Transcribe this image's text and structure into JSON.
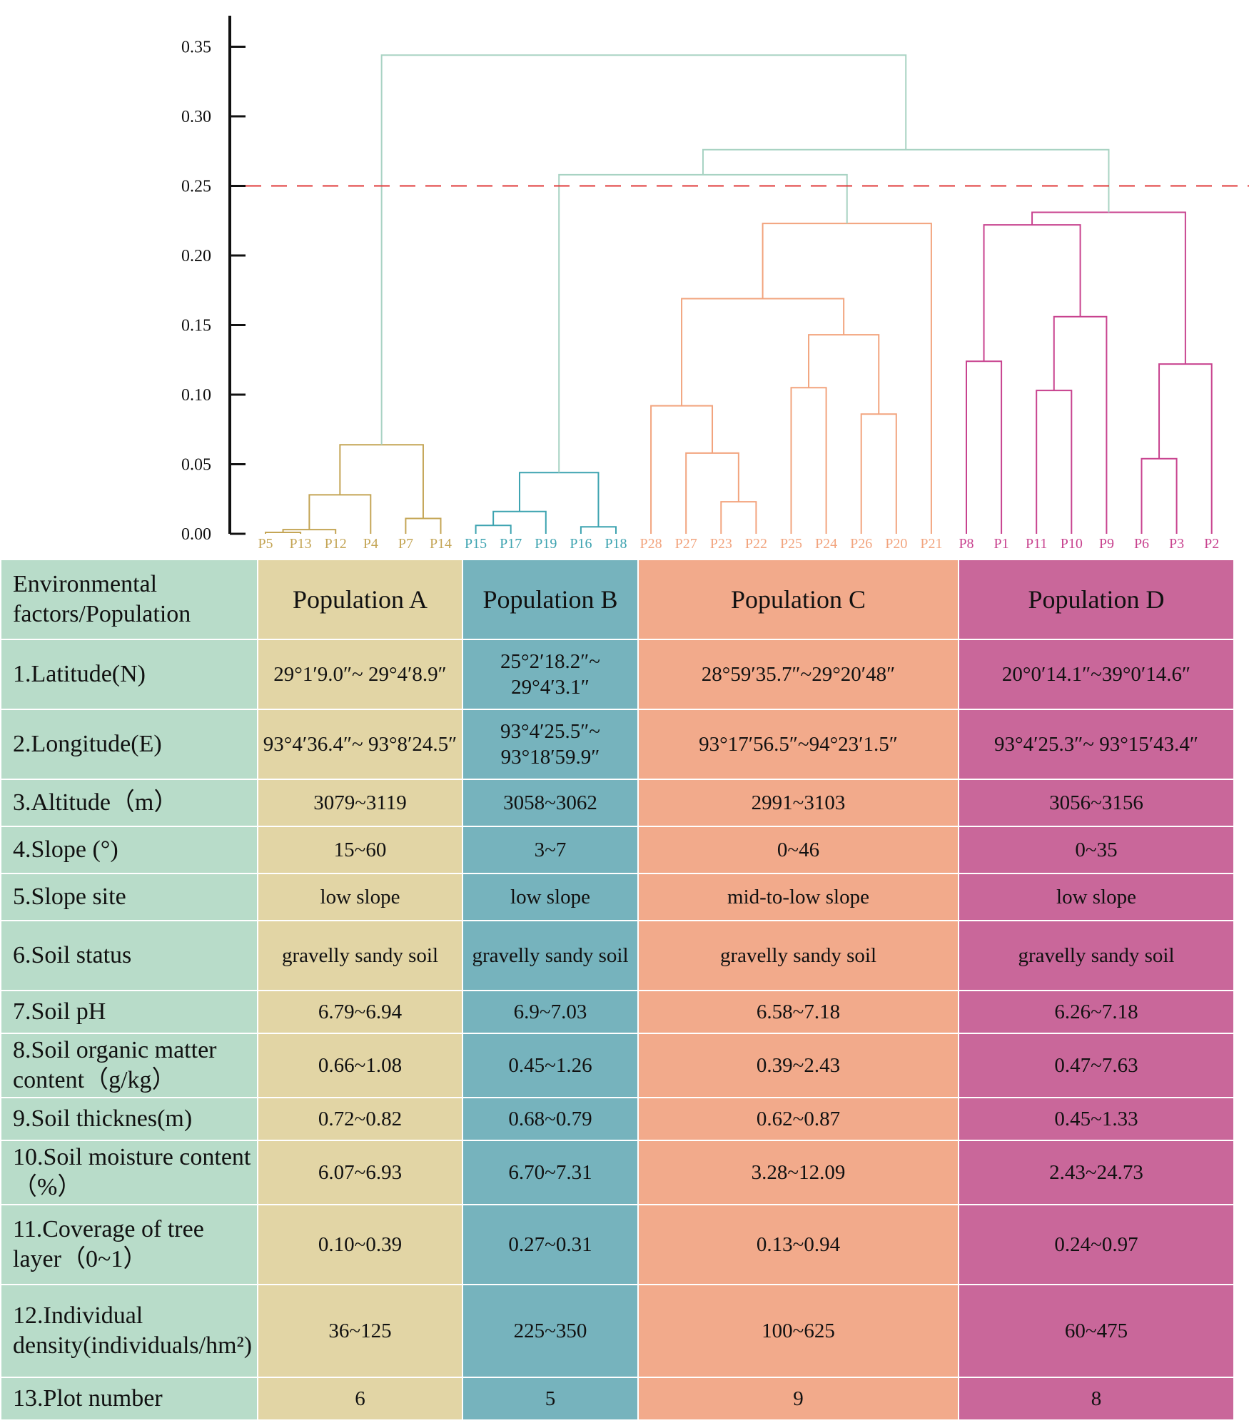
{
  "chart_data": {
    "type": "dendrogram",
    "yticks": [
      "0.00",
      "0.05",
      "0.10",
      "0.15",
      "0.20",
      "0.25",
      "0.30",
      "0.35"
    ],
    "ylim": [
      0,
      0.375
    ],
    "cutoff": 0.25,
    "cutoff_color": "#e03a3a",
    "leaves": [
      {
        "label": "P5",
        "group": "A"
      },
      {
        "label": "P13",
        "group": "A"
      },
      {
        "label": "P12",
        "group": "A"
      },
      {
        "label": "P4",
        "group": "A"
      },
      {
        "label": "P7",
        "group": "A"
      },
      {
        "label": "P14",
        "group": "A"
      },
      {
        "label": "P15",
        "group": "B"
      },
      {
        "label": "P17",
        "group": "B"
      },
      {
        "label": "P19",
        "group": "B"
      },
      {
        "label": "P16",
        "group": "B"
      },
      {
        "label": "P18",
        "group": "B"
      },
      {
        "label": "P28",
        "group": "C"
      },
      {
        "label": "P27",
        "group": "C"
      },
      {
        "label": "P23",
        "group": "C"
      },
      {
        "label": "P22",
        "group": "C"
      },
      {
        "label": "P25",
        "group": "C"
      },
      {
        "label": "P24",
        "group": "C"
      },
      {
        "label": "P26",
        "group": "C"
      },
      {
        "label": "P20",
        "group": "C"
      },
      {
        "label": "P21",
        "group": "C"
      },
      {
        "label": "P8",
        "group": "D"
      },
      {
        "label": "P1",
        "group": "D"
      },
      {
        "label": "P11",
        "group": "D"
      },
      {
        "label": "P10",
        "group": "D"
      },
      {
        "label": "P9",
        "group": "D"
      },
      {
        "label": "P6",
        "group": "D"
      },
      {
        "label": "P3",
        "group": "D"
      },
      {
        "label": "P2",
        "group": "D"
      }
    ],
    "group_colors": {
      "A": "#c4a555",
      "B": "#3da3b0",
      "C": "#f2a47e",
      "D": "#c8438f",
      "root": "#a8d3c3"
    },
    "merges": [
      {
        "id": "a1",
        "left": "P5",
        "right": "P13",
        "height": 0.001,
        "group": "A"
      },
      {
        "id": "a2",
        "left": "a1",
        "right": "P12",
        "height": 0.003,
        "group": "A"
      },
      {
        "id": "a3",
        "left": "a2",
        "right": "P4",
        "height": 0.028,
        "group": "A"
      },
      {
        "id": "a4",
        "left": "P7",
        "right": "P14",
        "height": 0.011,
        "group": "A"
      },
      {
        "id": "A",
        "left": "a3",
        "right": "a4",
        "height": 0.064,
        "group": "A"
      },
      {
        "id": "b1",
        "left": "P15",
        "right": "P17",
        "height": 0.006,
        "group": "B"
      },
      {
        "id": "b2",
        "left": "b1",
        "right": "P19",
        "height": 0.016,
        "group": "B"
      },
      {
        "id": "b3",
        "left": "P16",
        "right": "P18",
        "height": 0.005,
        "group": "B"
      },
      {
        "id": "B",
        "left": "b2",
        "right": "b3",
        "height": 0.044,
        "group": "B"
      },
      {
        "id": "c1",
        "left": "P23",
        "right": "P22",
        "height": 0.023,
        "group": "C"
      },
      {
        "id": "c2",
        "left": "P27",
        "right": "c1",
        "height": 0.058,
        "group": "C"
      },
      {
        "id": "c3",
        "left": "P28",
        "right": "c2",
        "height": 0.092,
        "group": "C"
      },
      {
        "id": "c4",
        "left": "P25",
        "right": "P24",
        "height": 0.105,
        "group": "C"
      },
      {
        "id": "c5",
        "left": "P26",
        "right": "P20",
        "height": 0.086,
        "group": "C"
      },
      {
        "id": "c6",
        "left": "c4",
        "right": "c5",
        "height": 0.143,
        "group": "C"
      },
      {
        "id": "c7",
        "left": "c3",
        "right": "c6",
        "height": 0.169,
        "group": "C"
      },
      {
        "id": "C",
        "left": "c7",
        "right": "P21",
        "height": 0.223,
        "group": "C"
      },
      {
        "id": "d1",
        "left": "P8",
        "right": "P1",
        "height": 0.124,
        "group": "D"
      },
      {
        "id": "d2",
        "left": "P11",
        "right": "P10",
        "height": 0.103,
        "group": "D"
      },
      {
        "id": "d3",
        "left": "d2",
        "right": "P9",
        "height": 0.156,
        "group": "D"
      },
      {
        "id": "d4",
        "left": "d1",
        "right": "d3",
        "height": 0.222,
        "group": "D"
      },
      {
        "id": "d5",
        "left": "P6",
        "right": "P3",
        "height": 0.054,
        "group": "D"
      },
      {
        "id": "d6",
        "left": "d5",
        "right": "P2",
        "height": 0.122,
        "group": "D"
      },
      {
        "id": "D",
        "left": "d4",
        "right": "d6",
        "height": 0.231,
        "group": "D"
      },
      {
        "id": "r1",
        "left": "B",
        "right": "C",
        "height": 0.258,
        "group": "root"
      },
      {
        "id": "r2",
        "left": "r1",
        "right": "D",
        "height": 0.276,
        "group": "root"
      },
      {
        "id": "r3",
        "left": "A",
        "right": "r2",
        "height": 0.344,
        "group": "root"
      }
    ]
  },
  "table": {
    "corner": "Environmental factors/Population",
    "populations": [
      "Population A",
      "Population B",
      "Population C",
      "Population D"
    ],
    "rows": [
      {
        "factor": "1.Latitude(N)",
        "values": [
          "29°1′9.0″~ 29°4′8.9″",
          "25°2′18.2″~ 29°4′3.1″",
          "28°59′35.7″~29°20′48″",
          "20°0′14.1″~39°0′14.6″"
        ]
      },
      {
        "factor": "2.Longitude(E)",
        "values": [
          "93°4′36.4″~ 93°8′24.5″",
          "93°4′25.5″~ 93°18′59.9″",
          "93°17′56.5″~94°23′1.5″",
          "93°4′25.3″~ 93°15′43.4″"
        ]
      },
      {
        "factor": "3.Altitude（m）",
        "values": [
          "3079~3119",
          "3058~3062",
          "2991~3103",
          "3056~3156"
        ]
      },
      {
        "factor": "4.Slope (°)",
        "values": [
          "15~60",
          "3~7",
          "0~46",
          "0~35"
        ]
      },
      {
        "factor": "5.Slope site",
        "values": [
          "low slope",
          "low slope",
          "mid-to-low slope",
          "low slope"
        ]
      },
      {
        "factor": "6.Soil status",
        "values": [
          "gravelly sandy soil",
          "gravelly sandy soil",
          "gravelly sandy soil",
          "gravelly sandy soil"
        ]
      },
      {
        "factor": "7.Soil pH",
        "values": [
          "6.79~6.94",
          "6.9~7.03",
          "6.58~7.18",
          "6.26~7.18"
        ]
      },
      {
        "factor": "8.Soil organic matter content（g/kg）",
        "values": [
          "0.66~1.08",
          "0.45~1.26",
          "0.39~2.43",
          "0.47~7.63"
        ]
      },
      {
        "factor": "9.Soil thicknes(m)",
        "values": [
          "0.72~0.82",
          "0.68~0.79",
          "0.62~0.87",
          "0.45~1.33"
        ]
      },
      {
        "factor": "10.Soil moisture content（%）",
        "values": [
          "6.07~6.93",
          "6.70~7.31",
          "3.28~12.09",
          "2.43~24.73"
        ]
      },
      {
        "factor": "11.Coverage of tree layer（0~1）",
        "values": [
          "0.10~0.39",
          "0.27~0.31",
          "0.13~0.94",
          "0.24~0.97"
        ]
      },
      {
        "factor": "12.Individual density(individuals/hm²)",
        "values": [
          "36~125",
          "225~350",
          "100~625",
          "60~475"
        ]
      },
      {
        "factor": "13.Plot number",
        "values": [
          "6",
          "5",
          "9",
          "8"
        ]
      }
    ]
  }
}
